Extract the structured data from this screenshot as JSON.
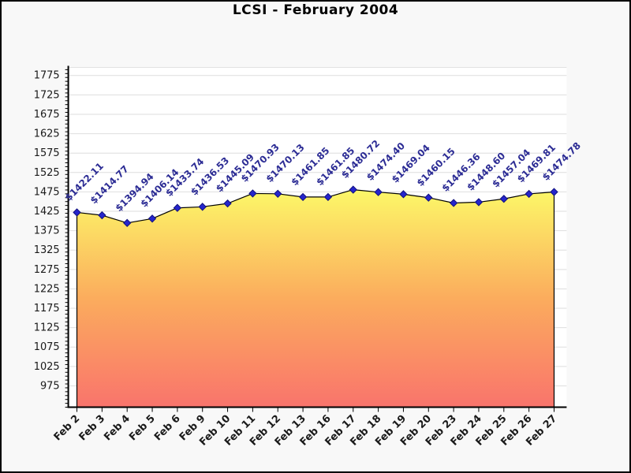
{
  "window": {
    "background": "#f8f8f8",
    "border_color": "#000000"
  },
  "chart_data": {
    "type": "area",
    "title": "LCSI - February 2004",
    "xlabel": "",
    "ylabel": "",
    "categories": [
      "Feb 2",
      "Feb 3",
      "Feb 4",
      "Feb 5",
      "Feb 6",
      "Feb 9",
      "Feb 10",
      "Feb 11",
      "Feb 12",
      "Feb 13",
      "Feb 16",
      "Feb 17",
      "Feb 18",
      "Feb 19",
      "Feb 20",
      "Feb 23",
      "Feb 24",
      "Feb 25",
      "Feb 26",
      "Feb 27"
    ],
    "values": [
      1422.11,
      1414.77,
      1394.94,
      1406.14,
      1433.74,
      1436.53,
      1445.09,
      1470.93,
      1470.13,
      1461.85,
      1461.85,
      1480.72,
      1474.4,
      1469.04,
      1460.15,
      1446.36,
      1448.6,
      1457.04,
      1469.81,
      1474.78
    ],
    "point_labels": [
      "$1422.11",
      "$1414.77",
      "$1394.94",
      "$1406.14",
      "$1433.74",
      "$1436.53",
      "$1445.09",
      "$1470.93",
      "$1470.13",
      "$1461.85",
      "$1461.85",
      "$1480.72",
      "$1474.40",
      "$1469.04",
      "$1460.15",
      "$1446.36",
      "$1448.60",
      "$1457.04",
      "$1469.81",
      "$1474.78"
    ],
    "label_rotation_deg": -45,
    "ylim": [
      920,
      1796
    ],
    "y_ticks": {
      "start": 975,
      "end": 1775,
      "step": 50,
      "minor_step": 10
    },
    "y_tick_labels": [
      975,
      1025,
      1075,
      1125,
      1175,
      1225,
      1275,
      1325,
      1375,
      1425,
      1475,
      1525,
      1575,
      1625,
      1675,
      1725,
      1775
    ],
    "grid": true,
    "legend": false,
    "colors": {
      "marker": "#2525cc",
      "marker_stroke": "#10107e",
      "line": "#000000",
      "point_label": "#2b2b94",
      "grid": "#dedede",
      "axis": "#000000",
      "text": "#1a1a1a",
      "plot_background": "#ffffff",
      "page_background": "#f8f8f8",
      "area_gradient": [
        "#fcf868",
        "#fbac5d",
        "#f9746c"
      ]
    }
  }
}
